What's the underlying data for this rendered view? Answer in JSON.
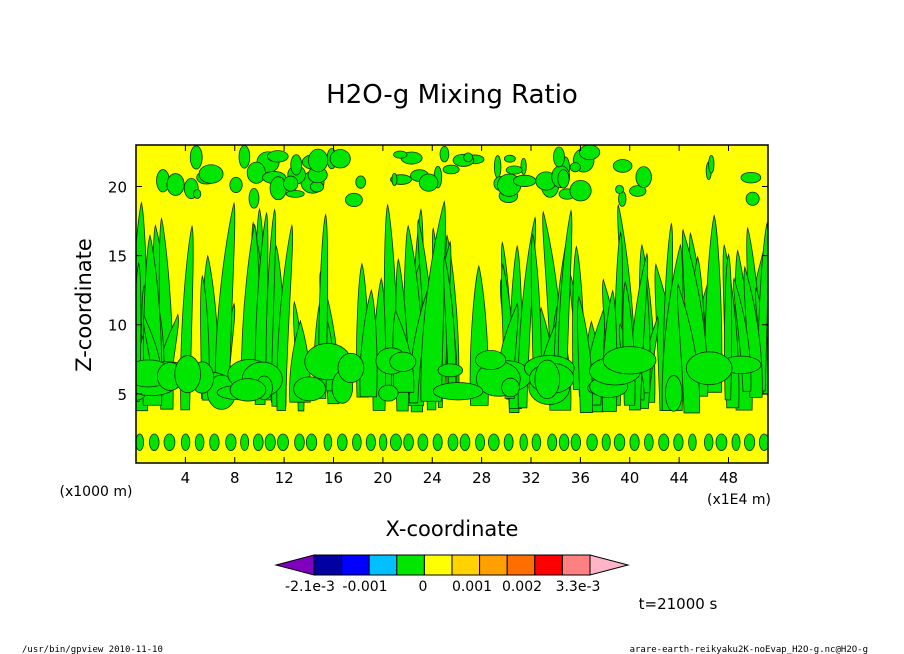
{
  "chart_data": {
    "type": "heatmap",
    "title": "H2O-g Mixing Ratio",
    "xlabel": "X-coordinate",
    "ylabel": "Z-coordinate",
    "x_unit_label": "(x1E4 m)",
    "y_unit_label": "(x1000 m)",
    "xlim": [
      0,
      51.2
    ],
    "ylim": [
      0,
      23
    ],
    "x_ticks": [
      "4",
      "8",
      "12",
      "16",
      "20",
      "24",
      "28",
      "32",
      "36",
      "40",
      "44",
      "48"
    ],
    "x_tick_values": [
      4,
      8,
      12,
      16,
      20,
      24,
      28,
      32,
      36,
      40,
      44,
      48
    ],
    "y_ticks": [
      "5",
      "10",
      "15",
      "20"
    ],
    "y_tick_values": [
      5,
      10,
      15,
      20
    ],
    "dominant_colors": [
      "#ffff00",
      "#00e600"
    ],
    "field_bands": [
      {
        "level": "0 to 0.001",
        "color": "#ffff00",
        "description_zone": "background"
      },
      {
        "level": "-0.001 to 0",
        "color": "#00e600",
        "description_zone": "plumes and layers"
      }
    ],
    "colorbar": {
      "labels": [
        "-2.1e-3",
        "-0.001",
        "0",
        "0.001",
        "0.002",
        "3.3e-3"
      ],
      "colors": [
        "#8000c0",
        "#0000a0",
        "#0000ff",
        "#00c0ff",
        "#00e600",
        "#ffff00",
        "#ffd200",
        "#ffa000",
        "#ff6e00",
        "#ff0000",
        "#ff8080",
        "#ffb4c8"
      ]
    },
    "time_label": "t=21000 s",
    "grid": false
  },
  "footer": {
    "left": "/usr/bin/gpview   2010-11-10",
    "right": "arare-earth-reikyaku2K-noEvap_H2O-g.nc@H2O-g"
  }
}
